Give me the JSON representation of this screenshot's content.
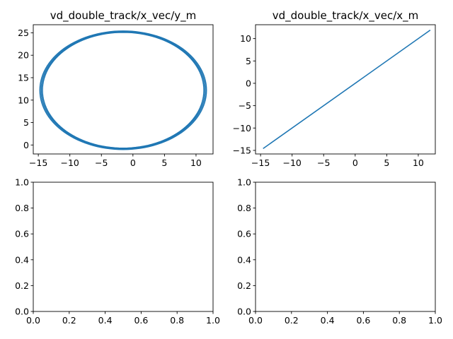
{
  "colors": {
    "series": "#1f77b4",
    "axes": "#000000",
    "background": "#ffffff"
  },
  "chart_data": [
    {
      "type": "line",
      "title": "vd_double_track/x_vec/y_m",
      "xlabel": "",
      "ylabel": "",
      "xlim": [
        -15.8,
        12.7
      ],
      "ylim": [
        -2.0,
        26.8
      ],
      "xticks": [
        -15,
        -10,
        -5,
        0,
        5,
        10
      ],
      "yticks": [
        0,
        5,
        10,
        15,
        20,
        25
      ],
      "xtick_labels": [
        "−15",
        "−10",
        "−5",
        "0",
        "5",
        "10"
      ],
      "ytick_labels": [
        "0",
        "5",
        "10",
        "15",
        "20",
        "25"
      ],
      "grid": false,
      "series": [
        {
          "shape": "ellipse-loops",
          "center_x": -1.55,
          "center_y": 12.2,
          "loops": [
            {
              "radius_x": 12.8,
              "radius_y": 12.9
            },
            {
              "radius_x": 13.0,
              "radius_y": 13.0
            },
            {
              "radius_x": 13.2,
              "radius_y": 13.2
            }
          ]
        }
      ]
    },
    {
      "type": "line",
      "title": "vd_double_track/x_vec/x_m",
      "xlabel": "",
      "ylabel": "",
      "xlim": [
        -15.8,
        12.7
      ],
      "ylim": [
        -15.8,
        13.1
      ],
      "xticks": [
        -15,
        -10,
        -5,
        0,
        5,
        10
      ],
      "yticks": [
        -15,
        -10,
        -5,
        0,
        5,
        10
      ],
      "xtick_labels": [
        "−15",
        "−10",
        "−5",
        "0",
        "5",
        "10"
      ],
      "ytick_labels": [
        "−15",
        "−10",
        "−5",
        "0",
        "5",
        "10"
      ],
      "grid": false,
      "series": [
        {
          "x": [
            -14.6,
            11.9
          ],
          "y": [
            -14.6,
            11.9
          ]
        }
      ]
    },
    {
      "type": "line",
      "title": "",
      "xlim": [
        0,
        1
      ],
      "ylim": [
        0,
        1
      ],
      "xticks": [
        0,
        0.2,
        0.4,
        0.6,
        0.8,
        1.0
      ],
      "yticks": [
        0,
        0.2,
        0.4,
        0.6,
        0.8,
        1.0
      ],
      "xtick_labels": [
        "0.0",
        "0.2",
        "0.4",
        "0.6",
        "0.8",
        "1.0"
      ],
      "ytick_labels": [
        "0.0",
        "0.2",
        "0.4",
        "0.6",
        "0.8",
        "1.0"
      ],
      "grid": false,
      "series": []
    },
    {
      "type": "line",
      "title": "",
      "xlim": [
        0,
        1
      ],
      "ylim": [
        0,
        1
      ],
      "xticks": [
        0,
        0.2,
        0.4,
        0.6,
        0.8,
        1.0
      ],
      "yticks": [
        0,
        0.2,
        0.4,
        0.6,
        0.8,
        1.0
      ],
      "xtick_labels": [
        "0.0",
        "0.2",
        "0.4",
        "0.6",
        "0.8",
        "1.0"
      ],
      "ytick_labels": [
        "0.0",
        "0.2",
        "0.4",
        "0.6",
        "0.8",
        "1.0"
      ],
      "grid": false,
      "series": []
    }
  ]
}
